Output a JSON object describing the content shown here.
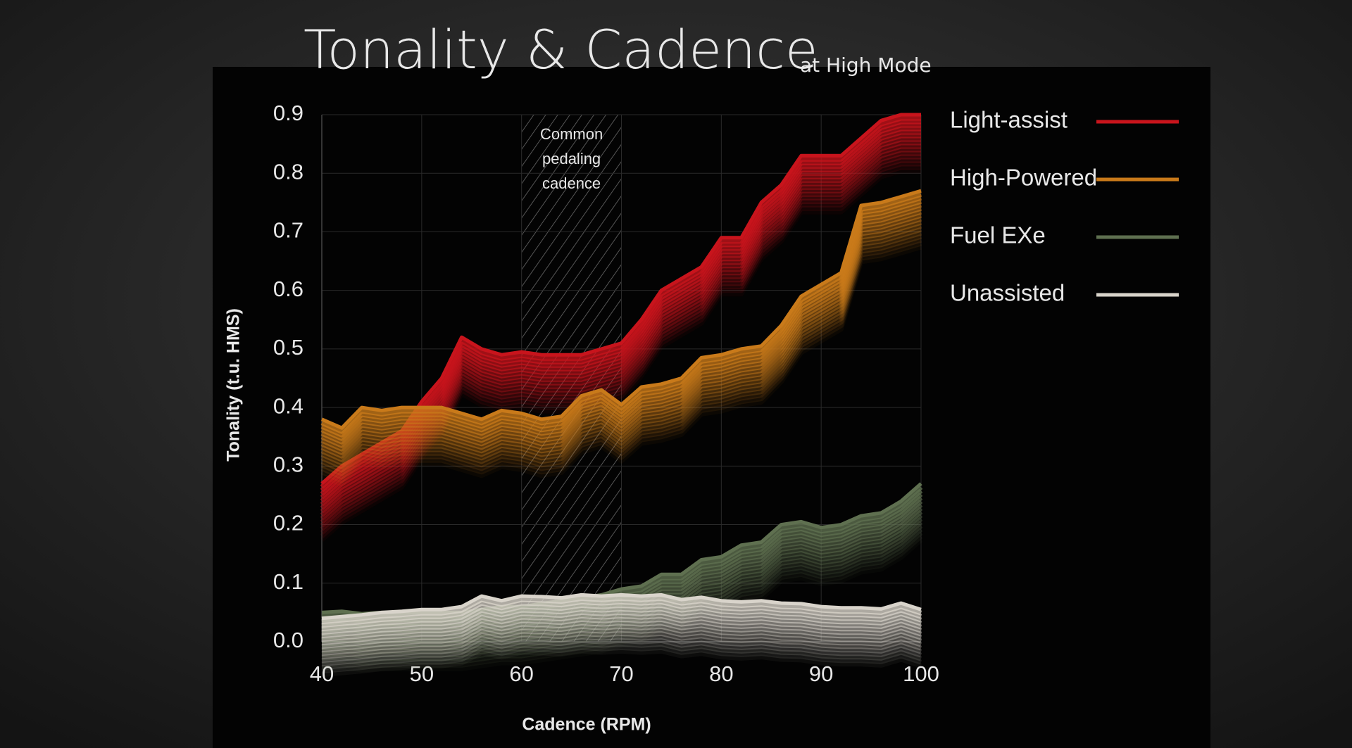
{
  "chart_data": {
    "type": "line",
    "title": "Tonality & Cadence",
    "subtitle": "at High Mode",
    "x_label": "Cadence (RPM)",
    "y_label": "Tonality (t.u. HMS)",
    "x": [
      40,
      42,
      44,
      46,
      48,
      50,
      52,
      54,
      56,
      58,
      60,
      62,
      64,
      66,
      68,
      70,
      72,
      74,
      76,
      78,
      80,
      82,
      84,
      86,
      88,
      90,
      92,
      94,
      96,
      98,
      100
    ],
    "series": [
      {
        "name": "Light-assist",
        "color": "#c8141c",
        "values": [
          0.27,
          0.3,
          0.32,
          0.34,
          0.36,
          0.41,
          0.45,
          0.52,
          0.5,
          0.49,
          0.495,
          0.49,
          0.49,
          0.49,
          0.5,
          0.51,
          0.55,
          0.6,
          0.62,
          0.64,
          0.69,
          0.69,
          0.75,
          0.78,
          0.83,
          0.83,
          0.83,
          0.86,
          0.89,
          0.9,
          0.9
        ]
      },
      {
        "name": "High-Powered",
        "color": "#c97a1a",
        "values": [
          0.38,
          0.365,
          0.4,
          0.395,
          0.4,
          0.4,
          0.4,
          0.39,
          0.38,
          0.395,
          0.39,
          0.38,
          0.385,
          0.42,
          0.43,
          0.405,
          0.435,
          0.44,
          0.45,
          0.485,
          0.49,
          0.5,
          0.505,
          0.54,
          0.59,
          0.61,
          0.63,
          0.745,
          0.75,
          0.76,
          0.77
        ]
      },
      {
        "name": "Fuel EXe",
        "color": "#5f7050",
        "values": [
          0.05,
          0.052,
          0.048,
          0.05,
          0.05,
          0.05,
          0.05,
          0.05,
          0.055,
          0.06,
          0.06,
          0.065,
          0.07,
          0.075,
          0.08,
          0.09,
          0.095,
          0.115,
          0.115,
          0.14,
          0.145,
          0.165,
          0.17,
          0.2,
          0.205,
          0.195,
          0.2,
          0.215,
          0.22,
          0.24,
          0.27
        ]
      },
      {
        "name": "Unassisted",
        "color": "#d9d4cb",
        "values": [
          0.04,
          0.043,
          0.046,
          0.05,
          0.052,
          0.055,
          0.055,
          0.06,
          0.078,
          0.07,
          0.078,
          0.077,
          0.075,
          0.08,
          0.078,
          0.08,
          0.078,
          0.08,
          0.072,
          0.076,
          0.07,
          0.068,
          0.07,
          0.066,
          0.065,
          0.06,
          0.058,
          0.058,
          0.056,
          0.066,
          0.055
        ]
      }
    ],
    "xlim": [
      40,
      100
    ],
    "ylim": [
      0,
      0.9
    ],
    "xticks": [
      40,
      50,
      60,
      70,
      80,
      90,
      100
    ],
    "yticks": [
      {
        "value": 0,
        "label": "0.0"
      },
      0.1,
      0.2,
      0.3,
      0.4,
      0.5,
      0.6,
      0.7,
      0.8,
      0.9
    ],
    "grid": true,
    "legend": "right",
    "annotation": {
      "lines": [
        "Common",
        "pedaling",
        "cadence"
      ],
      "x_range": [
        60,
        70
      ]
    }
  }
}
